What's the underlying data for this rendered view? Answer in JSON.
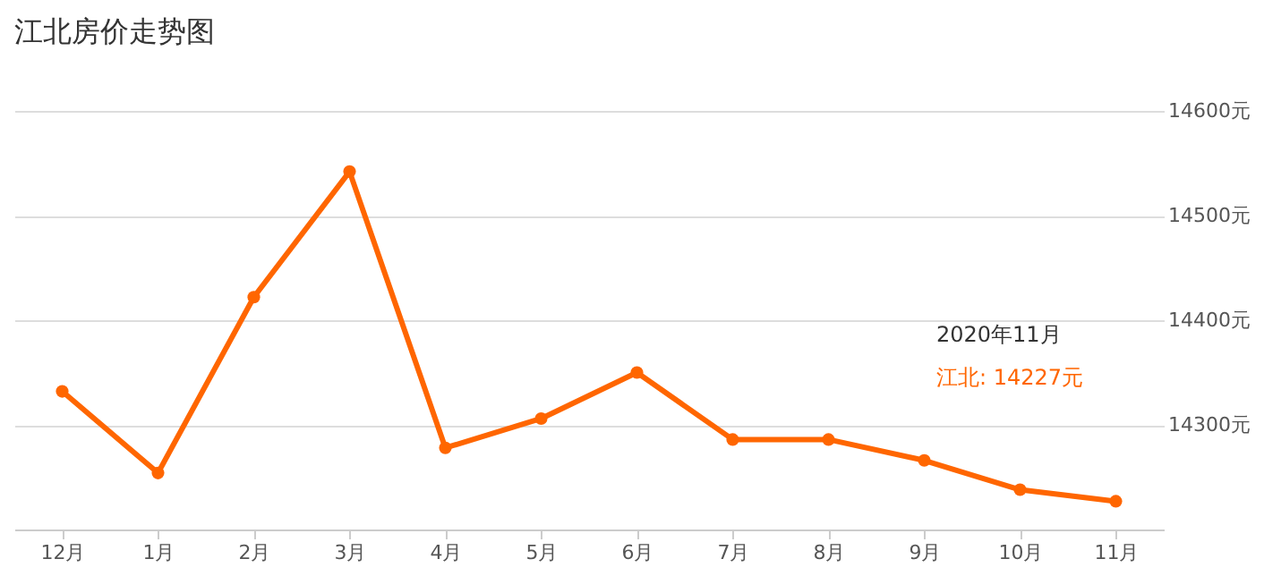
{
  "chart_data": {
    "type": "line",
    "title": "江北房价走势图",
    "categories": [
      "12月",
      "1月",
      "2月",
      "3月",
      "4月",
      "5月",
      "6月",
      "7月",
      "8月",
      "9月",
      "10月",
      "11月"
    ],
    "series": [
      {
        "color": "#ff6600",
        "values": [
          14332,
          14254,
          14422,
          14542,
          14278,
          14306,
          14350,
          14286,
          14286,
          14266,
          14238,
          14227
        ]
      }
    ],
    "ylim": [
      14200,
      14600
    ],
    "yticks": [
      {
        "value": 14300,
        "label": "14300元"
      },
      {
        "value": 14400,
        "label": "14400元"
      },
      {
        "value": 14500,
        "label": "14500元"
      },
      {
        "value": 14600,
        "label": "14600元"
      }
    ],
    "grid": "y",
    "marker": "circle",
    "line_style": "solid",
    "annotations": [
      "2020年11月",
      "江北: 14227元"
    ]
  }
}
